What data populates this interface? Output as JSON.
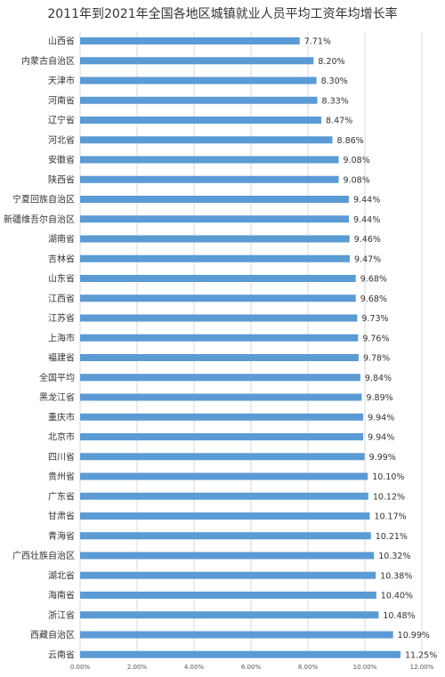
{
  "chart_data": {
    "type": "bar",
    "orientation": "horizontal",
    "title": "2011年到2021年全国各地区城镇就业人员平均工资年均增长率",
    "categories": [
      "山西省",
      "内蒙古自治区",
      "天津市",
      "河南省",
      "辽宁省",
      "河北省",
      "安徽省",
      "陕西省",
      "宁夏回族自治区",
      "新疆维吾尔自治区",
      "湖南省",
      "吉林省",
      "山东省",
      "江西省",
      "江苏省",
      "上海市",
      "福建省",
      "全国平均",
      "黑龙江省",
      "重庆市",
      "北京市",
      "四川省",
      "贵州省",
      "广东省",
      "甘肃省",
      "青海省",
      "广西壮族自治区",
      "湖北省",
      "海南省",
      "浙江省",
      "西藏自治区",
      "云南省"
    ],
    "values": [
      7.71,
      8.2,
      8.3,
      8.33,
      8.47,
      8.86,
      9.08,
      9.08,
      9.44,
      9.44,
      9.46,
      9.47,
      9.68,
      9.68,
      9.73,
      9.76,
      9.78,
      9.84,
      9.89,
      9.94,
      9.94,
      9.99,
      10.1,
      10.12,
      10.17,
      10.21,
      10.32,
      10.38,
      10.4,
      10.48,
      10.99,
      11.25
    ],
    "value_labels": [
      "7.71%",
      "8.20%",
      "8.30%",
      "8.33%",
      "8.47%",
      "8.86%",
      "9.08%",
      "9.08%",
      "9.44%",
      "9.44%",
      "9.46%",
      "9.47%",
      "9.68%",
      "9.68%",
      "9.73%",
      "9.76%",
      "9.78%",
      "9.84%",
      "9.89%",
      "9.94%",
      "9.94%",
      "9.99%",
      "10.10%",
      "10.12%",
      "10.17%",
      "10.21%",
      "10.32%",
      "10.38%",
      "10.40%",
      "10.48%",
      "10.99%",
      "11.25%"
    ],
    "xlim": [
      0,
      12
    ],
    "x_ticks": [
      "0.00%",
      "2.00%",
      "4.00%",
      "6.00%",
      "8.00%",
      "10.00%",
      "12.00%"
    ],
    "x_tick_values": [
      0,
      2,
      4,
      6,
      8,
      10,
      12
    ],
    "grid": "vertical",
    "bar_color": "#5b9bd5"
  }
}
